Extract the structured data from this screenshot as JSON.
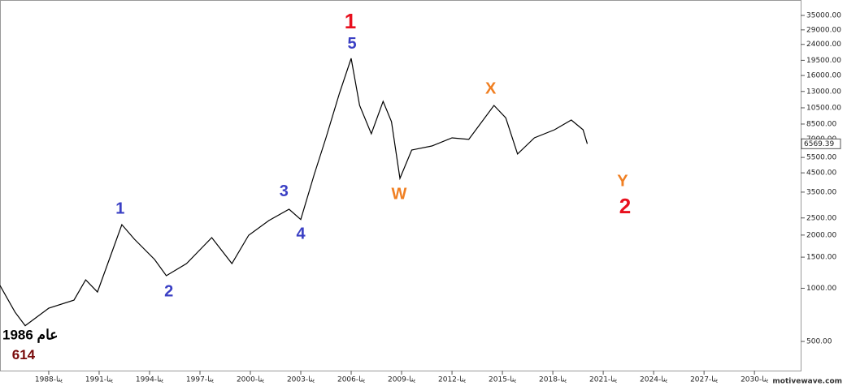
{
  "chart_data": {
    "type": "line",
    "log_scale": true,
    "color": "#000000",
    "x": [
      1985.1,
      1986.0,
      1986.6,
      1988.0,
      1989.5,
      1990.2,
      1990.9,
      1991.6,
      1992.35,
      1993.1,
      1994.3,
      1995.0,
      1996.2,
      1997.7,
      1998.9,
      1999.9,
      2001.1,
      2002.3,
      2003.0,
      2003.8,
      2004.5,
      2005.3,
      2006.0,
      2006.5,
      2007.2,
      2007.9,
      2008.4,
      2008.9,
      2009.6,
      2010.8,
      2012.0,
      2013.0,
      2014.5,
      2015.2,
      2015.9,
      2016.9,
      2018.1,
      2019.1,
      2019.8,
      2020.05
    ],
    "values": [
      1037,
      731,
      614,
      771,
      857,
      1116,
      952,
      1454,
      2291,
      1894,
      1454,
      1177,
      1380,
      1935,
      1380,
      1996,
      2415,
      2801,
      2450,
      4413,
      7100,
      12700,
      20000,
      10840,
      7485,
      11420,
      8770,
      4187,
      6060,
      6390,
      7100,
      6960,
      10840,
      9220,
      5750,
      7100,
      7890,
      8960,
      7890,
      6569.39
    ],
    "last_value": 6569.39,
    "xlim": [
      1985.1,
      2032.75
    ],
    "ylim": [
      342,
      42800
    ],
    "xticks": [
      {
        "value": 1988,
        "label": "1988-ينا"
      },
      {
        "value": 1991,
        "label": "1991-ينا"
      },
      {
        "value": 1994,
        "label": "1994-ينا"
      },
      {
        "value": 1997,
        "label": "1997-ينا"
      },
      {
        "value": 2000,
        "label": "2000-ينا"
      },
      {
        "value": 2003,
        "label": "2003-ينا"
      },
      {
        "value": 2006,
        "label": "2006-ينا"
      },
      {
        "value": 2009,
        "label": "2009-ينا"
      },
      {
        "value": 2012,
        "label": "2012-ينا"
      },
      {
        "value": 2015,
        "label": "2015-ينا"
      },
      {
        "value": 2018,
        "label": "2018-ينا"
      },
      {
        "value": 2021,
        "label": "2021-ينا"
      },
      {
        "value": 2024,
        "label": "2024-ينا"
      },
      {
        "value": 2027,
        "label": "2027-ينا"
      },
      {
        "value": 2030,
        "label": "2030-ينا"
      }
    ],
    "yticks": [
      {
        "value": 35000,
        "label": "35000.00"
      },
      {
        "value": 29000,
        "label": "29000.00"
      },
      {
        "value": 24000,
        "label": "24000.00"
      },
      {
        "value": 19500,
        "label": "19500.00"
      },
      {
        "value": 16000,
        "label": "16000.00"
      },
      {
        "value": 13000,
        "label": "13000.00"
      },
      {
        "value": 10500,
        "label": "10500.00"
      },
      {
        "value": 8500,
        "label": "8500.00"
      },
      {
        "value": 7000,
        "label": "7000.00"
      },
      {
        "value": 5500,
        "label": "5500.00"
      },
      {
        "value": 4500,
        "label": "4500.00"
      },
      {
        "value": 3500,
        "label": "3500.00"
      },
      {
        "value": 2500,
        "label": "2500.00"
      },
      {
        "value": 2000,
        "label": "2000.00"
      },
      {
        "value": 1500,
        "label": "1500.00"
      },
      {
        "value": 1000,
        "label": "1000.00"
      },
      {
        "value": 500,
        "label": "500.00"
      }
    ],
    "annotations": [
      {
        "text": "1",
        "x": 2005.95,
        "y": 31800,
        "color": "#e8101e",
        "size": 26
      },
      {
        "text": "5",
        "x": 2006.05,
        "y": 23950,
        "color": "#3a3fc4",
        "size": 20
      },
      {
        "text": "1",
        "x": 1992.25,
        "y": 2800,
        "color": "#3a3fc4",
        "size": 20
      },
      {
        "text": "2",
        "x": 1995.15,
        "y": 953,
        "color": "#3a3fc4",
        "size": 20
      },
      {
        "text": "3",
        "x": 2002.0,
        "y": 3500,
        "color": "#3a3fc4",
        "size": 20
      },
      {
        "text": "4",
        "x": 2003.0,
        "y": 2018,
        "color": "#3a3fc4",
        "size": 20
      },
      {
        "text": "W",
        "x": 2008.85,
        "y": 3386,
        "color": "#f07f22",
        "size": 20
      },
      {
        "text": "X",
        "x": 2014.3,
        "y": 13380,
        "color": "#f07f22",
        "size": 20
      },
      {
        "text": "Y",
        "x": 2022.15,
        "y": 4010,
        "color": "#f07f22",
        "size": 20
      },
      {
        "text": "2",
        "x": 2022.3,
        "y": 2860,
        "color": "#e8101e",
        "size": 26
      },
      {
        "text": "عام 1986",
        "x": 1986.9,
        "y": 540,
        "color": "#000000",
        "size": 17
      },
      {
        "text": "614",
        "x": 1986.5,
        "y": 415,
        "color": "#7a0c0c",
        "size": 17
      }
    ],
    "watermark": "motivewave.com"
  }
}
